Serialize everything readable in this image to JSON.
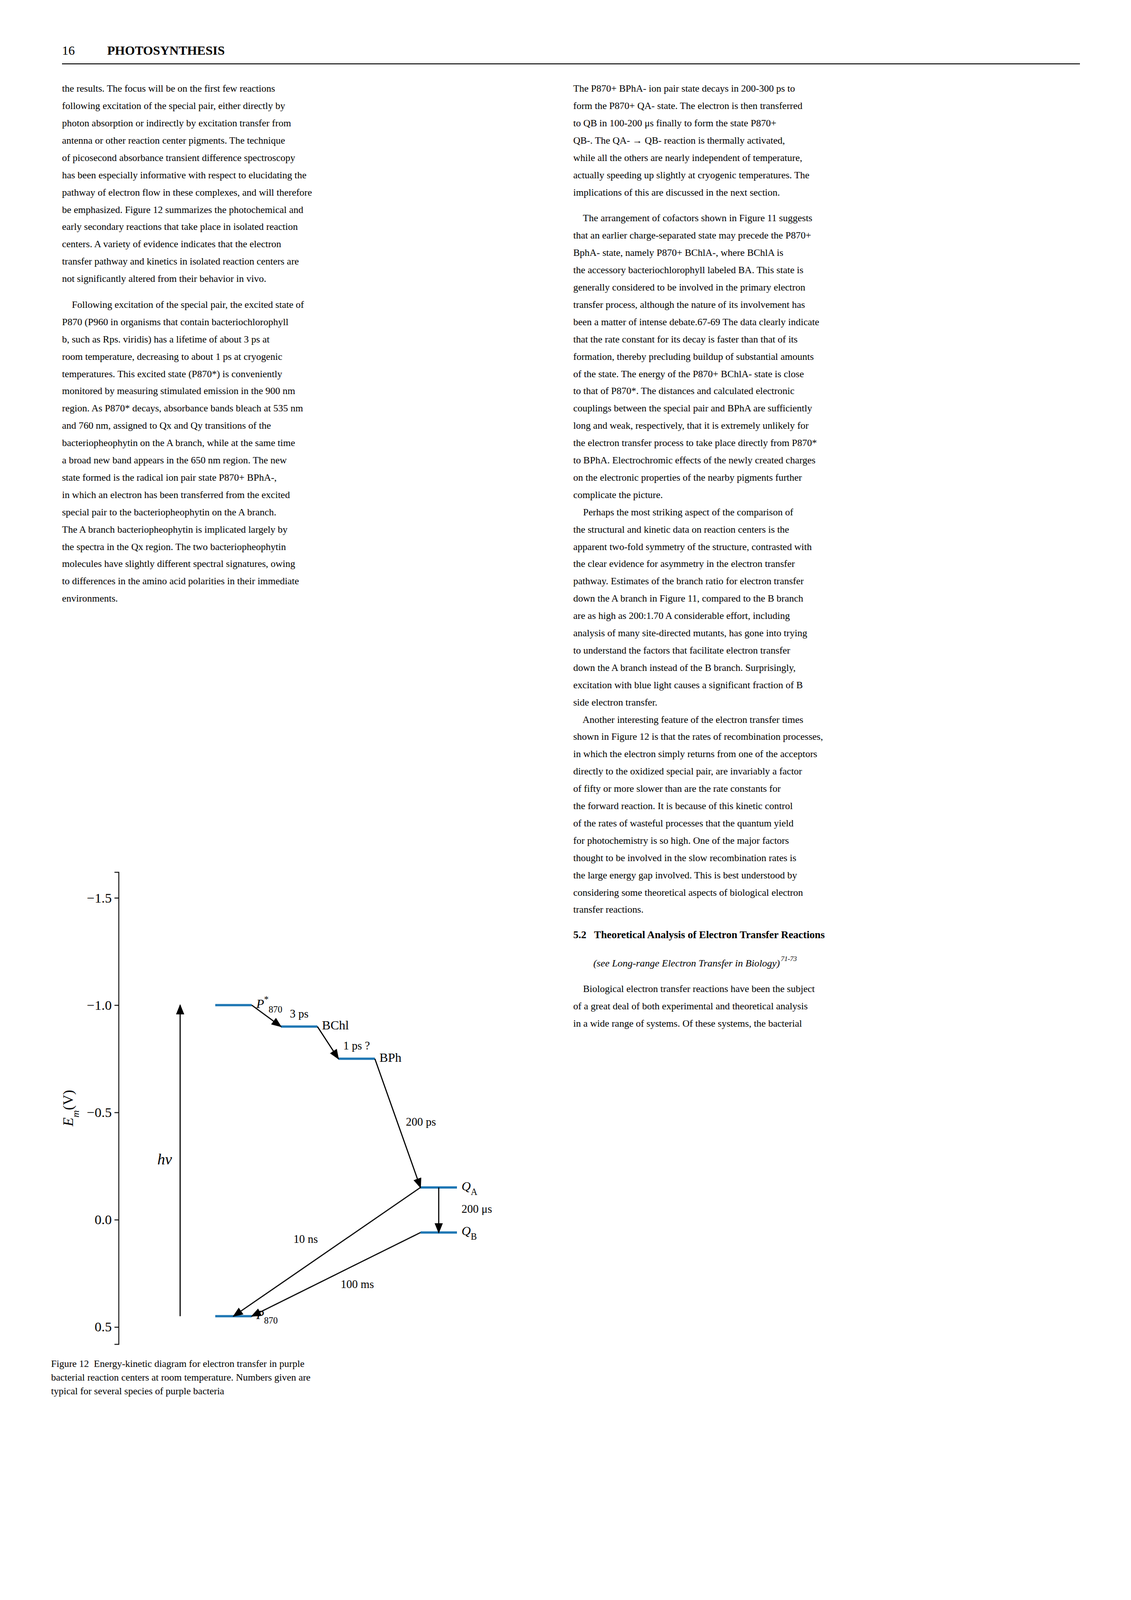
{
  "page": {
    "page_number": "16",
    "running_head": "PHOTOSYNTHESIS",
    "left_column": [
      [
        "the results. The focus will be on the first few reactions",
        "following excitation of the special pair, either directly by",
        "photon absorption or indirectly by excitation transfer from",
        "antenna or other reaction center pigments. The technique",
        "of picosecond absorbance transient difference spectroscopy",
        "has been especially informative with respect to elucidating the",
        "pathway of electron flow in these complexes, and will therefore",
        "be emphasized. Figure 12 summarizes the photochemical and",
        "early secondary reactions that take place in isolated reaction",
        "centers. A variety of evidence indicates that the electron",
        "transfer pathway and kinetics in isolated reaction centers are",
        "not significantly altered from their behavior in vivo."
      ],
      [
        "    Following excitation of the special pair, the excited state of",
        "P870 (P960 in organisms that contain bacteriochlorophyll",
        "b, such as Rps. viridis) has a lifetime of about 3 ps at",
        "room temperature, decreasing to about 1 ps at cryogenic",
        "temperatures. This excited state (P870*) is conveniently",
        "monitored by measuring stimulated emission in the 900 nm",
        "region. As P870* decays, absorbance bands bleach at 535 nm",
        "and 760 nm, assigned to Qx and Qy transitions of the",
        "bacteriopheophytin on the A branch, while at the same time",
        "a broad new band appears in the 650 nm region. The new",
        "state formed is the radical ion pair state P870+ BPhA-,",
        "in which an electron has been transferred from the excited",
        "special pair to the bacteriopheophytin on the A branch.",
        "The A branch bacteriopheophytin is implicated largely by",
        "the spectra in the Qx region. The two bacteriopheophytin",
        "molecules have slightly different spectral signatures, owing",
        "to differences in the amino acid polarities in their immediate",
        "environments."
      ]
    ],
    "right_column": [
      [
        "The P870+ BPhA- ion pair state decays in 200-300 ps to",
        "form the P870+ QA- state. The electron is then transferred",
        "to QB in 100-200 μs finally to form the state P870+",
        "QB-. The QA- → QB- reaction is thermally activated,",
        "while all the others are nearly independent of temperature,",
        "actually speeding up slightly at cryogenic temperatures. The",
        "implications of this are discussed in the next section."
      ],
      [
        "    The arrangement of cofactors shown in Figure 11 suggests",
        "that an earlier charge-separated state may precede the P870+",
        "BphA- state, namely P870+ BChlA-, where BChlA is",
        "the accessory bacteriochlorophyll labeled BA. This state is",
        "generally considered to be involved in the primary electron",
        "transfer process, although the nature of its involvement has",
        "been a matter of intense debate.67-69 The data clearly indicate",
        "that the rate constant for its decay is faster than that of its",
        "formation, thereby precluding buildup of substantial amounts",
        "of the state. The energy of the P870+ BChlA- state is close",
        "to that of P870*. The distances and calculated electronic",
        "couplings between the special pair and BPhA are sufficiently",
        "long and weak, respectively, that it is extremely unlikely for",
        "the electron transfer process to take place directly from P870*",
        "to BPhA. Electrochromic effects of the newly created charges",
        "on the electronic properties of the nearby pigments further",
        "complicate the picture.",
        "    Perhaps the most striking aspect of the comparison of",
        "the structural and kinetic data on reaction centers is the",
        "apparent two-fold symmetry of the structure, contrasted with",
        "the clear evidence for asymmetry in the electron transfer",
        "pathway. Estimates of the branch ratio for electron transfer",
        "down the A branch in Figure 11, compared to the B branch",
        "are as high as 200:1.70 A considerable effort, including",
        "analysis of many site-directed mutants, has gone into trying",
        "to understand the factors that facilitate electron transfer",
        "down the A branch instead of the B branch. Surprisingly,",
        "excitation with blue light causes a significant fraction of B",
        "side electron transfer.",
        "    Another interesting feature of the electron transfer times",
        "shown in Figure 12 is that the rates of recombination processes,",
        "in which the electron simply returns from one of the acceptors",
        "directly to the oxidized special pair, are invariably a factor",
        "of fifty or more slower than are the rate constants for",
        "the forward reaction. It is because of this kinetic control",
        "of the rates of wasteful processes that the quantum yield",
        "for photochemistry is so high. One of the major factors",
        "thought to be involved in the slow recombination rates is",
        "the large energy gap involved. This is best understood by",
        "considering some theoretical aspects of biological electron",
        "transfer reactions."
      ]
    ],
    "section_header": "5.2   Theoretical Analysis of Electron Transfer Reactions",
    "section_subheader": "(see Long-range Electron Transfer in Biology)",
    "section_subheader_refs": "71-73",
    "section_text": [
      "    Biological electron transfer reactions have been the subject",
      "of a great deal of both experimental and theoretical analysis",
      "in a wide range of systems. Of these systems, the bacterial"
    ],
    "figure_caption": [
      "Figure 12  Energy-kinetic diagram for electron transfer in purple",
      "bacterial reaction centers at room temperature. Numbers given are",
      "typical for several species of purple bacteria"
    ]
  },
  "chart_data": {
    "type": "diagram",
    "y_label": "Em(V)",
    "ylim": [
      0.58,
      -1.62
    ],
    "yticks": [
      {
        "value": -1.5,
        "label": "−1.5"
      },
      {
        "value": -1.0,
        "label": "−1.0"
      },
      {
        "value": -0.5,
        "label": "−0.5"
      },
      {
        "value": 0.0,
        "label": "0.0"
      },
      0.5
    ],
    "categories": [
      "P*870",
      "BChl",
      "BPh",
      "QA",
      "QB",
      "P870"
    ],
    "values": [
      -1.0,
      -0.9,
      -0.75,
      -0.15,
      0.06,
      0.45
    ],
    "annotations": [
      {
        "text": "hν",
        "from": 5,
        "to": 0
      },
      {
        "text": "3 ps",
        "from": 0,
        "to": 1
      },
      {
        "text": "1 ps ?",
        "from": 1,
        "to": 2
      },
      {
        "text": "200 ps",
        "from": 2,
        "to": 3
      },
      {
        "text": "200 μs",
        "from": 3,
        "to": 4
      },
      {
        "text": "10 ns",
        "from": 3,
        "to": 5
      },
      {
        "text": "100 ms",
        "from": 4,
        "to": 5
      }
    ]
  }
}
